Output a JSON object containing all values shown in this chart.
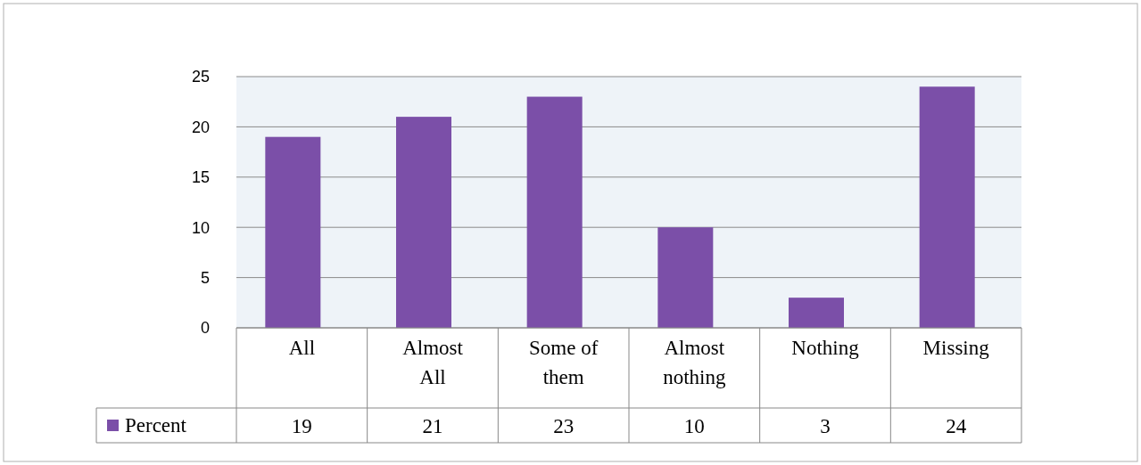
{
  "chart_data": {
    "type": "bar",
    "categories": [
      "All",
      "Almost All",
      "Some of them",
      "Almost nothing",
      "Nothing",
      "Missing"
    ],
    "series": [
      {
        "name": "Percent",
        "color": "#7b4fa8",
        "values": [
          19,
          21,
          23,
          10,
          3,
          24
        ]
      }
    ],
    "ylim": [
      0,
      25
    ],
    "yticks": [
      0,
      5,
      10,
      15,
      20,
      25
    ],
    "grid": "y",
    "data_labels": true,
    "legend": "bottom"
  }
}
